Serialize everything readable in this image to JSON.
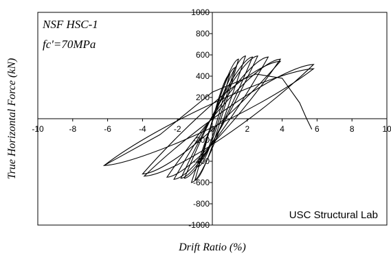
{
  "chart_data": {
    "type": "line",
    "title": "",
    "xlabel": "Drift Ratio (%)",
    "ylabel": "True Horizontal Force (kN)",
    "xlim": [
      -10,
      10
    ],
    "ylim": [
      -1000,
      1000
    ],
    "x_ticks": [
      -10,
      -8,
      -6,
      -4,
      -2,
      0,
      2,
      4,
      6,
      8,
      10
    ],
    "x_tick_labels": [
      "-10",
      "-8",
      "-6",
      "-4",
      "-2",
      "0",
      "2",
      "4",
      "6",
      "8",
      "10"
    ],
    "y_ticks": [
      -1000,
      -800,
      -600,
      -400,
      -200,
      0,
      200,
      400,
      600,
      800,
      1000
    ],
    "y_tick_labels": [
      "-1000",
      "-800",
      "-600",
      "-400",
      "-200",
      "0",
      "200",
      "400",
      "600",
      "800",
      "1000"
    ],
    "grid": false,
    "annotations": [
      "NSF HSC-1",
      "fc'=70MPa",
      "USC Structural Lab"
    ],
    "loops": [
      {
        "peak": [
          1.0,
          420
        ],
        "trough": [
          -0.6,
          -380
        ],
        "width": 60
      },
      {
        "peak": [
          1.3,
          480
        ],
        "trough": [
          -0.8,
          -450
        ],
        "width": 80
      },
      {
        "peak": [
          1.5,
          560
        ],
        "trough": [
          -1.0,
          -580
        ],
        "width": 90
      },
      {
        "peak": [
          1.9,
          590
        ],
        "trough": [
          -1.2,
          -600
        ],
        "width": 110
      },
      {
        "peak": [
          2.3,
          580
        ],
        "trough": [
          -1.6,
          -560
        ],
        "width": 130
      },
      {
        "peak": [
          2.6,
          590
        ],
        "trough": [
          -1.8,
          -560
        ],
        "width": 150
      },
      {
        "peak": [
          3.2,
          580
        ],
        "trough": [
          -2.2,
          -570
        ],
        "width": 180
      },
      {
        "peak": [
          3.9,
          560
        ],
        "trough": [
          -2.6,
          -550
        ],
        "width": 210
      },
      {
        "peak": [
          3.9,
          540
        ],
        "trough": [
          -4.0,
          -520
        ],
        "width": 260
      },
      {
        "peak": [
          5.8,
          510
        ],
        "trough": [
          -3.9,
          -540
        ],
        "width": 300
      },
      {
        "peak": [
          5.8,
          470
        ],
        "trough": [
          -6.2,
          -440
        ],
        "width": 330
      }
    ],
    "final_branch": [
      [
        -6.2,
        -440
      ],
      [
        -3,
        -150
      ],
      [
        0,
        250
      ],
      [
        2.5,
        420
      ],
      [
        4.0,
        380
      ],
      [
        5.0,
        150
      ],
      [
        5.4,
        0
      ],
      [
        5.7,
        -100
      ]
    ]
  }
}
